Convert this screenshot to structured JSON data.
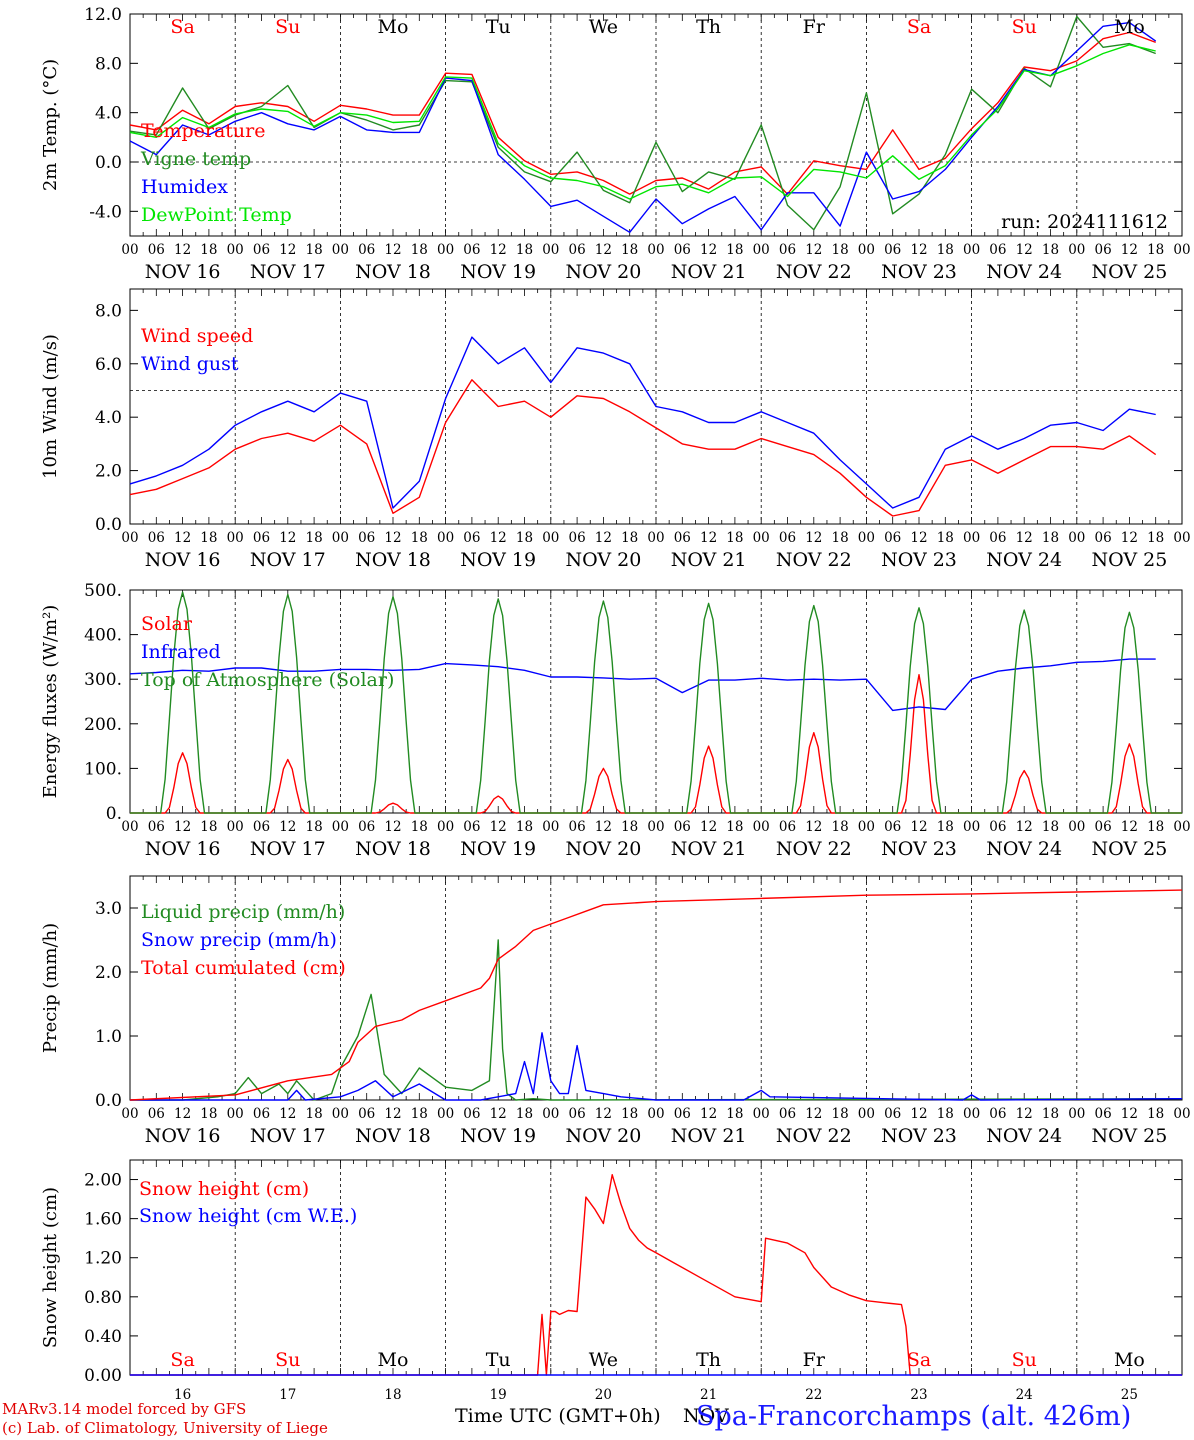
{
  "days": [
    {
      "abbr": "Sa",
      "date": "NOV 16",
      "num": "16",
      "color": "#ff0000"
    },
    {
      "abbr": "Su",
      "date": "NOV 17",
      "num": "17",
      "color": "#ff0000"
    },
    {
      "abbr": "Mo",
      "date": "NOV 18",
      "num": "18",
      "color": "#000000"
    },
    {
      "abbr": "Tu",
      "date": "NOV 19",
      "num": "19",
      "color": "#000000"
    },
    {
      "abbr": "We",
      "date": "NOV 20",
      "num": "20",
      "color": "#000000"
    },
    {
      "abbr": "Th",
      "date": "NOV 21",
      "num": "21",
      "color": "#000000"
    },
    {
      "abbr": "Fr",
      "date": "NOV 22",
      "num": "22",
      "color": "#000000"
    },
    {
      "abbr": "Sa",
      "date": "NOV 23",
      "num": "23",
      "color": "#ff0000"
    },
    {
      "abbr": "Su",
      "date": "NOV 24",
      "num": "24",
      "color": "#ff0000"
    },
    {
      "abbr": "Mo",
      "date": "NOV 25",
      "num": "25",
      "color": "#000000"
    }
  ],
  "hour_ticks": [
    "00",
    "06",
    "12",
    "18"
  ],
  "run_label": "run: 2024111612",
  "footer": {
    "credit_line1": "MARv3.14 model forced by GFS",
    "credit_line2": "(c) Lab. of Climatology, University of Liege",
    "xlabel": "Time UTC (GMT+0h)",
    "month": "NOV",
    "station": "Spa-Francorchamps (alt. 426m)"
  },
  "chart_data": [
    {
      "type": "line",
      "ylabel": "2m Temp. (°C)",
      "ylim": [
        -6,
        12
      ],
      "yticks": [
        "12.0",
        "8.0",
        "4.0",
        "0.0",
        "-4.0"
      ],
      "ytick_values": [
        12,
        8,
        4,
        0,
        -4
      ],
      "hline": 0,
      "series": [
        {
          "name": "Temperature",
          "color": "#ff0000",
          "x": [
            0,
            6,
            12,
            18,
            24,
            30,
            36,
            42,
            48,
            54,
            60,
            66,
            72,
            78,
            84,
            90,
            96,
            102,
            108,
            114,
            120,
            126,
            132,
            138,
            144,
            150,
            156,
            162,
            168,
            174,
            180,
            186,
            192,
            198,
            204,
            210,
            216,
            222,
            228,
            234
          ],
          "y": [
            3.0,
            2.6,
            4.2,
            3.1,
            4.5,
            4.8,
            4.5,
            3.3,
            4.6,
            4.3,
            3.8,
            3.8,
            7.2,
            7.1,
            2.0,
            0.1,
            -1.0,
            -0.8,
            -1.5,
            -2.6,
            -1.5,
            -1.3,
            -2.2,
            -0.8,
            -0.4,
            -2.6,
            0.1,
            -0.3,
            -0.6,
            2.6,
            -0.6,
            0.3,
            2.7,
            4.8,
            7.7,
            7.4,
            8.2,
            10.0,
            10.5,
            9.7
          ]
        },
        {
          "name": "Vigne temp",
          "color": "#228b22",
          "x": [
            0,
            6,
            12,
            18,
            24,
            30,
            36,
            42,
            48,
            54,
            60,
            66,
            72,
            78,
            84,
            90,
            96,
            102,
            108,
            114,
            120,
            126,
            132,
            138,
            144,
            150,
            156,
            162,
            168,
            174,
            180,
            186,
            192,
            198,
            204,
            210,
            216,
            222,
            228,
            234
          ],
          "y": [
            2.5,
            2.2,
            6.0,
            2.7,
            3.8,
            4.5,
            6.2,
            2.8,
            4.0,
            3.4,
            2.6,
            3.0,
            6.6,
            6.5,
            1.2,
            -0.8,
            -1.6,
            0.8,
            -2.3,
            -3.3,
            1.6,
            -2.4,
            -0.8,
            -1.4,
            3.0,
            -3.5,
            -5.5,
            -2.0,
            5.6,
            -4.2,
            -2.6,
            0.6,
            5.9,
            4.0,
            7.6,
            6.1,
            11.8,
            9.3,
            9.6,
            8.8
          ]
        },
        {
          "name": "Humidex",
          "color": "#0000ff",
          "x": [
            0,
            6,
            12,
            18,
            24,
            30,
            36,
            42,
            48,
            54,
            60,
            66,
            72,
            78,
            84,
            90,
            96,
            102,
            108,
            114,
            120,
            126,
            132,
            138,
            144,
            150,
            156,
            162,
            168,
            174,
            180,
            186,
            192,
            198,
            204,
            210,
            216,
            222,
            228,
            234
          ],
          "y": [
            1.7,
            0.6,
            3.0,
            2.2,
            3.3,
            4.0,
            3.1,
            2.6,
            3.7,
            2.6,
            2.4,
            2.4,
            6.8,
            6.6,
            0.6,
            -1.4,
            -3.6,
            -3.1,
            -4.4,
            -5.7,
            -3.0,
            -5.0,
            -3.8,
            -2.8,
            -5.5,
            -2.5,
            -2.5,
            -5.2,
            0.8,
            -3.0,
            -2.4,
            -0.6,
            2.0,
            4.5,
            7.5,
            7.0,
            9.0,
            11.0,
            11.3,
            9.8
          ]
        },
        {
          "name": "DewPoint Temp",
          "color": "#00e600",
          "x": [
            0,
            6,
            12,
            18,
            24,
            30,
            36,
            42,
            48,
            54,
            60,
            66,
            72,
            78,
            84,
            90,
            96,
            102,
            108,
            114,
            120,
            126,
            132,
            138,
            144,
            150,
            156,
            162,
            168,
            174,
            180,
            186,
            192,
            198,
            204,
            210,
            216,
            222,
            228,
            234
          ],
          "y": [
            2.4,
            2.0,
            3.6,
            2.8,
            3.9,
            4.3,
            4.1,
            2.9,
            4.0,
            3.8,
            3.2,
            3.3,
            6.9,
            6.8,
            1.5,
            -0.3,
            -1.3,
            -1.5,
            -2.0,
            -3.0,
            -2.0,
            -1.8,
            -2.5,
            -1.3,
            -1.2,
            -2.8,
            -0.6,
            -0.8,
            -1.3,
            0.5,
            -1.4,
            -0.3,
            2.2,
            4.3,
            7.4,
            7.0,
            7.8,
            8.8,
            9.5,
            9.0
          ]
        }
      ]
    },
    {
      "type": "line",
      "ylabel": "10m Wind (m/s)",
      "ylim": [
        0,
        8.8
      ],
      "yticks": [
        "8.0",
        "6.0",
        "4.0",
        "2.0",
        "0.0"
      ],
      "ytick_values": [
        8,
        6,
        4,
        2,
        0
      ],
      "hline": 5,
      "series": [
        {
          "name": "Wind speed",
          "color": "#ff0000",
          "x": [
            0,
            6,
            12,
            18,
            24,
            30,
            36,
            42,
            48,
            54,
            60,
            66,
            72,
            78,
            84,
            90,
            96,
            102,
            108,
            114,
            120,
            126,
            132,
            138,
            144,
            150,
            156,
            162,
            168,
            174,
            180,
            186,
            192,
            198,
            204,
            210,
            216,
            222,
            228,
            234
          ],
          "y": [
            1.1,
            1.3,
            1.7,
            2.1,
            2.8,
            3.2,
            3.4,
            3.1,
            3.7,
            3.0,
            0.4,
            1.0,
            3.8,
            5.4,
            4.4,
            4.6,
            4.0,
            4.8,
            4.7,
            4.2,
            3.6,
            3.0,
            2.8,
            2.8,
            3.2,
            2.9,
            2.6,
            1.9,
            1.0,
            0.3,
            0.5,
            2.2,
            2.4,
            1.9,
            2.4,
            2.9,
            2.9,
            2.8,
            3.3,
            2.6
          ]
        },
        {
          "name": "Wind gust",
          "color": "#0000ff",
          "x": [
            0,
            6,
            12,
            18,
            24,
            30,
            36,
            42,
            48,
            54,
            60,
            66,
            72,
            78,
            84,
            90,
            96,
            102,
            108,
            114,
            120,
            126,
            132,
            138,
            144,
            150,
            156,
            162,
            168,
            174,
            180,
            186,
            192,
            198,
            204,
            210,
            216,
            222,
            228,
            234
          ],
          "y": [
            1.5,
            1.8,
            2.2,
            2.8,
            3.7,
            4.2,
            4.6,
            4.2,
            4.9,
            4.6,
            0.6,
            1.6,
            4.7,
            7.0,
            6.0,
            6.6,
            5.3,
            6.6,
            6.4,
            6.0,
            4.4,
            4.2,
            3.8,
            3.8,
            4.2,
            3.8,
            3.4,
            2.4,
            1.5,
            0.6,
            1.0,
            2.8,
            3.3,
            2.8,
            3.2,
            3.7,
            3.8,
            3.5,
            4.3,
            4.1
          ]
        }
      ]
    },
    {
      "type": "line",
      "ylabel": "Energy fluxes (W/m²)",
      "ylim": [
        0,
        500
      ],
      "yticks": [
        "500.",
        "400.",
        "300.",
        "200.",
        "100.",
        "0."
      ],
      "ytick_values": [
        500,
        400,
        300,
        200,
        100,
        0
      ],
      "series": [
        {
          "name": "Solar",
          "color": "#ff0000",
          "peaks": [
            135,
            120,
            22,
            38,
            100,
            150,
            180,
            310,
            95,
            155
          ]
        },
        {
          "name": "Infrared",
          "color": "#0000ff",
          "x": [
            0,
            6,
            12,
            18,
            24,
            30,
            36,
            42,
            48,
            54,
            60,
            66,
            72,
            78,
            84,
            90,
            96,
            102,
            108,
            114,
            120,
            126,
            132,
            138,
            144,
            150,
            156,
            162,
            168,
            174,
            180,
            186,
            192,
            198,
            204,
            210,
            216,
            222,
            228,
            234
          ],
          "y": [
            312,
            315,
            320,
            318,
            325,
            325,
            318,
            318,
            322,
            322,
            320,
            322,
            335,
            332,
            328,
            320,
            305,
            305,
            303,
            300,
            302,
            270,
            298,
            298,
            302,
            298,
            300,
            298,
            300,
            230,
            238,
            232,
            300,
            318,
            325,
            330,
            338,
            340,
            345,
            345
          ]
        },
        {
          "name": "Top of Atmosphere (Solar)",
          "color": "#228b22",
          "peaks": [
            495,
            490,
            485,
            480,
            475,
            470,
            465,
            460,
            455,
            450
          ]
        }
      ]
    },
    {
      "type": "line",
      "ylabel": "Precip (mm/h)",
      "ylim": [
        0,
        3.5
      ],
      "yticks": [
        "3.0",
        "2.0",
        "1.0",
        "0.0"
      ],
      "ytick_values": [
        3,
        2,
        1,
        0
      ],
      "series": [
        {
          "name": "Liquid precip (mm/h)",
          "color": "#228b22",
          "x": [
            0,
            12,
            20,
            24,
            27,
            30,
            34,
            36,
            38,
            42,
            46,
            48,
            52,
            55,
            58,
            62,
            66,
            69,
            72,
            78,
            82,
            84,
            85,
            86,
            88,
            92,
            96,
            240
          ],
          "y": [
            0,
            0,
            0.05,
            0.1,
            0.35,
            0.1,
            0.25,
            0.1,
            0.3,
            0.0,
            0.1,
            0.5,
            1.0,
            1.65,
            0.4,
            0.1,
            0.5,
            0.35,
            0.2,
            0.15,
            0.3,
            2.5,
            0.8,
            0.1,
            0,
            0.02,
            0,
            0.02
          ]
        },
        {
          "name": "Snow precip (mm/h)",
          "color": "#0000ff",
          "x": [
            0,
            36,
            38,
            40,
            48,
            52,
            56,
            60,
            66,
            72,
            80,
            84,
            88,
            90,
            92,
            94,
            96,
            98,
            100,
            102,
            104,
            108,
            112,
            120,
            140,
            144,
            146,
            190,
            192,
            194,
            240
          ],
          "y": [
            0,
            0,
            0.15,
            0,
            0.05,
            0.15,
            0.3,
            0.05,
            0.25,
            0,
            0,
            0.05,
            0.1,
            0.6,
            0.1,
            1.05,
            0.3,
            0.1,
            0.1,
            0.85,
            0.15,
            0.1,
            0.05,
            0,
            0,
            0.15,
            0.05,
            0,
            0.08,
            0,
            0.02
          ]
        },
        {
          "name": "Total cumulated (cm)",
          "color": "#ff0000",
          "x": [
            0,
            24,
            36,
            46,
            50,
            52,
            56,
            62,
            66,
            72,
            80,
            82,
            84,
            88,
            92,
            96,
            100,
            104,
            108,
            120,
            144,
            168,
            192,
            216,
            240
          ],
          "y": [
            0,
            0.08,
            0.3,
            0.4,
            0.6,
            0.9,
            1.15,
            1.25,
            1.4,
            1.55,
            1.75,
            1.9,
            2.2,
            2.4,
            2.65,
            2.75,
            2.85,
            2.95,
            3.05,
            3.1,
            3.15,
            3.2,
            3.22,
            3.25,
            3.28
          ]
        }
      ]
    },
    {
      "type": "line",
      "ylabel": "Snow height (cm)",
      "ylim": [
        0,
        2.2
      ],
      "yticks": [
        "2.00",
        "1.60",
        "1.20",
        "0.80",
        "0.40",
        "0.00"
      ],
      "ytick_values": [
        2.0,
        1.6,
        1.2,
        0.8,
        0.4,
        0.0
      ],
      "series": [
        {
          "name": "Snow height (cm)",
          "color": "#ff0000",
          "x": [
            0,
            93,
            94,
            95,
            96,
            97,
            98,
            100,
            102,
            104,
            106,
            108,
            110,
            112,
            114,
            116,
            118,
            120,
            124,
            130,
            138,
            144,
            145,
            150,
            154,
            156,
            160,
            164,
            168,
            172,
            176,
            177,
            178,
            240
          ],
          "y": [
            0,
            0,
            0.62,
            0,
            0.65,
            0.65,
            0.62,
            0.66,
            0.65,
            1.82,
            1.7,
            1.55,
            2.05,
            1.75,
            1.5,
            1.38,
            1.3,
            1.25,
            1.15,
            1.0,
            0.8,
            0.75,
            1.4,
            1.35,
            1.25,
            1.1,
            0.9,
            0.82,
            0.76,
            0.74,
            0.72,
            0.5,
            0,
            0
          ]
        },
        {
          "name": "Snow height (cm W.E.)",
          "color": "#0000ff",
          "x": [
            0,
            240
          ],
          "y": [
            0,
            0
          ]
        }
      ]
    }
  ]
}
